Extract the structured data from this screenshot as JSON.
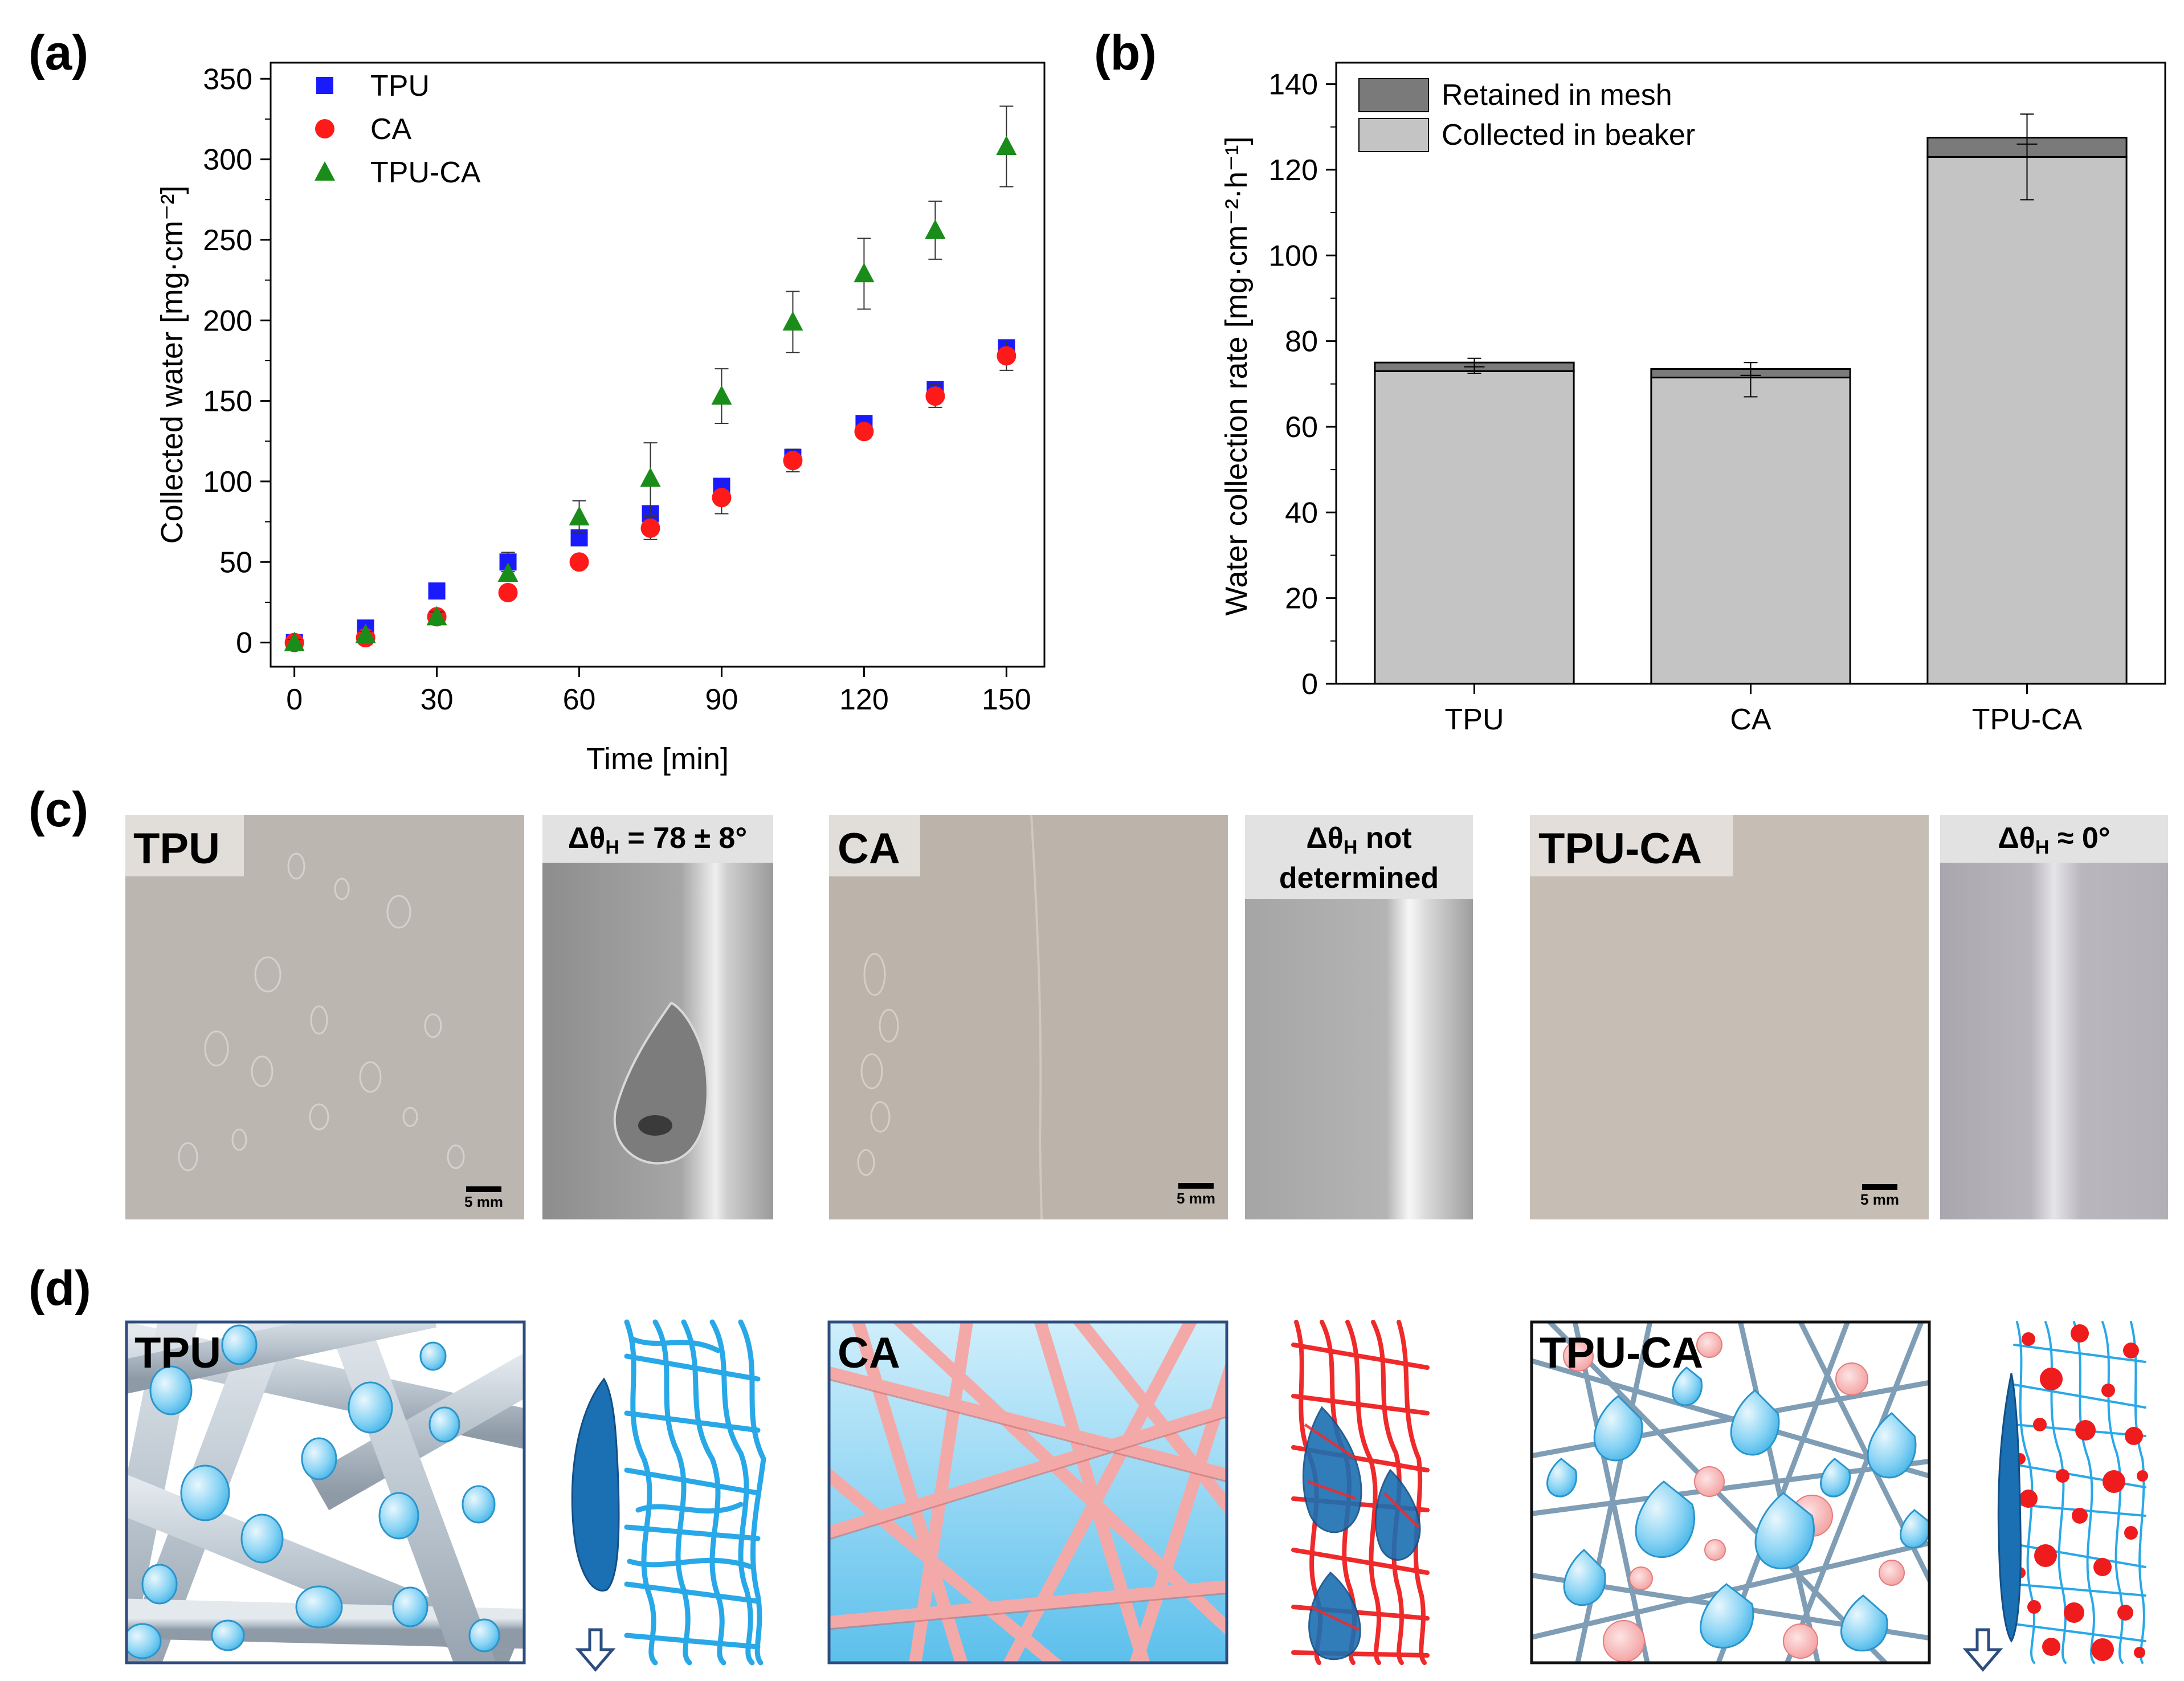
{
  "panels": {
    "a": "(a)",
    "b": "(b)",
    "c": "(c)",
    "d": "(d)"
  },
  "chart_data": [
    {
      "id": "a",
      "type": "scatter",
      "title": "",
      "xlabel": "Time [min]",
      "ylabel": "Collected water [mg·cm⁻²]",
      "xlim": [
        -5,
        158
      ],
      "ylim": [
        -15,
        360
      ],
      "xticks": [
        0,
        30,
        60,
        90,
        120,
        150
      ],
      "yticks": [
        0,
        50,
        100,
        150,
        200,
        250,
        300,
        350
      ],
      "grid": false,
      "legend_position": "top-left",
      "x": [
        0,
        15,
        30,
        45,
        60,
        75,
        90,
        105,
        120,
        135,
        150
      ],
      "series": [
        {
          "name": "TPU",
          "marker": "square",
          "color": "#1a1aff",
          "values": [
            0,
            9,
            32,
            50,
            65,
            80,
            97,
            115,
            136,
            157,
            183
          ],
          "errors": [
            2,
            3,
            3,
            6,
            3,
            4,
            4,
            4,
            4,
            4,
            4
          ]
        },
        {
          "name": "CA",
          "marker": "circle",
          "color": "#ff1a1a",
          "values": [
            0,
            3,
            16,
            31,
            50,
            71,
            90,
            113,
            131,
            153,
            178
          ],
          "errors": [
            2,
            2,
            2,
            4,
            3,
            7,
            10,
            7,
            4,
            7,
            9
          ]
        },
        {
          "name": "TPU-CA",
          "marker": "triangle",
          "color": "#1a8c1a",
          "values": [
            0,
            5,
            16,
            43,
            78,
            102,
            153,
            199,
            229,
            256,
            308
          ],
          "errors": [
            2,
            2,
            3,
            5,
            10,
            22,
            17,
            19,
            22,
            18,
            25
          ]
        }
      ]
    },
    {
      "id": "b",
      "type": "bar",
      "stacked": true,
      "title": "",
      "xlabel": "",
      "ylabel": "Water collection rate [mg·cm⁻²·h⁻¹]",
      "ylim": [
        0,
        145
      ],
      "yticks": [
        0,
        20,
        40,
        60,
        80,
        100,
        120,
        140
      ],
      "grid": false,
      "legend_position": "top-left",
      "categories": [
        "TPU",
        "CA",
        "TPU-CA"
      ],
      "series": [
        {
          "name": "Collected in beaker",
          "color": "#c4c4c4",
          "values": [
            73,
            71.5,
            123
          ]
        },
        {
          "name": "Retained in mesh",
          "color": "#7a7a7a",
          "values": [
            2,
            2,
            4.5
          ]
        }
      ],
      "errors": [
        {
          "center": 74,
          "low": 72.5,
          "high": 76
        },
        {
          "center": 72,
          "low": 67,
          "high": 75
        },
        {
          "center": 126,
          "low": 113,
          "high": 133
        }
      ]
    }
  ],
  "photos": [
    {
      "material": "TPU",
      "angle_label": "ΔθH = 78 ± 8°",
      "angle_prefix": "Δθ",
      "angle_sub": "H",
      "angle_suffix": " = 78 ± 8°",
      "scale": "5 mm"
    },
    {
      "material": "CA",
      "angle_prefix": "Δθ",
      "angle_sub": "H",
      "angle_suffix": " not",
      "angle_line2": "determined",
      "scale": "5 mm"
    },
    {
      "material": "TPU-CA",
      "angle_prefix": "Δθ",
      "angle_sub": "H",
      "angle_suffix": " ≈ 0°",
      "scale": "5 mm"
    }
  ],
  "schematics": [
    {
      "material": "TPU"
    },
    {
      "material": "CA"
    },
    {
      "material": "TPU-CA"
    }
  ],
  "colors": {
    "tpu_fiber": "#b7c2cc",
    "ca_fiber": "#f4a9a9",
    "droplet": "#6cc6f0",
    "droplet_dark": "#1b6fb3",
    "mesh_blue": "#29a8e8",
    "mesh_red": "#ee2a2a"
  }
}
